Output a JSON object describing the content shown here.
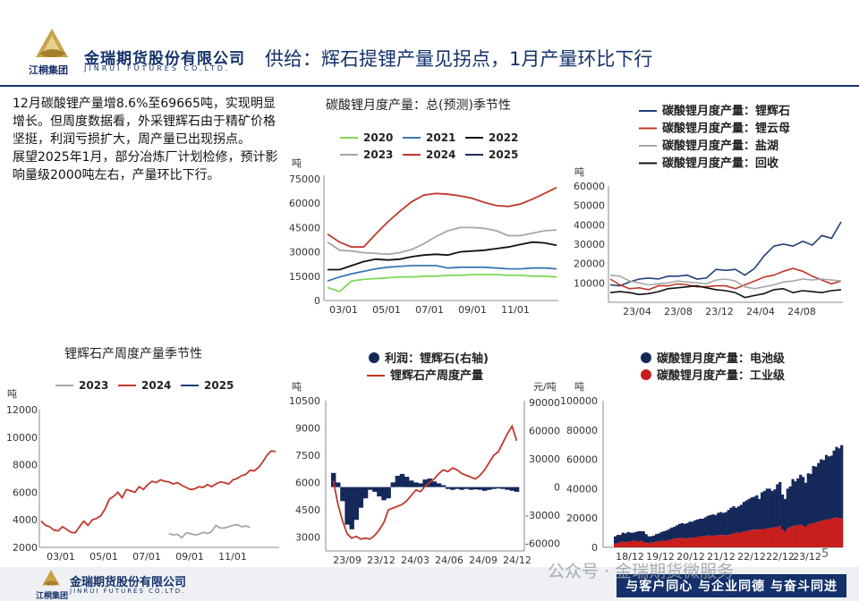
{
  "header": {
    "group_label": "江桐集团",
    "company_cn": "金瑞期货股份有限公司",
    "company_en": "JINRUI FUTURES CO.LTD.",
    "title": "供给：辉石提锂产量见拐点，1月产量环比下行"
  },
  "paragraphs": [
    "12月碳酸锂产量增8.6%至69665吨，实现明显增长。但周度数据看，外采锂辉石由于精矿价格坚挺，利润亏损扩大，周产量已出现拐点。",
    "展望2025年1月，部分冶炼厂计划检修，预计影响量级2000吨左右，产量环比下行。"
  ],
  "footer": {
    "group_label": "江桐集团",
    "company_cn": "金瑞期货股份有限公司",
    "company_en": "JINRUI FUTURES CO.LTD.",
    "slogan": "与客户同心 与企业同德 与奋斗同进",
    "watermark": "公众号 · 金瑞期货微服务",
    "page_number": "5"
  },
  "chart_data": [
    {
      "id": "chart1",
      "type": "line",
      "title": "碳酸锂月度产量：总(预测)季节性",
      "ylabel": "吨",
      "ylim": [
        0,
        75000
      ],
      "yticks": [
        0,
        15000,
        30000,
        45000,
        60000,
        75000
      ],
      "yticklabels": [
        "0",
        "15000",
        "30000",
        "45000",
        "60000",
        "75000"
      ],
      "xticks": [
        "03/01",
        "05/01",
        "07/01",
        "09/01",
        "11/01"
      ],
      "series": [
        {
          "name": "2020",
          "color": "#7ed957",
          "values": [
            8000,
            5500,
            12000,
            13000,
            13500,
            14000,
            14500,
            14500,
            15000,
            15000,
            15500,
            15500,
            16000,
            16000,
            16000,
            15500,
            15500,
            15000,
            15000,
            14500
          ]
        },
        {
          "name": "2021",
          "color": "#3a78b5",
          "values": [
            12000,
            14500,
            16500,
            18000,
            19500,
            20500,
            21000,
            21500,
            21500,
            21500,
            20000,
            20500,
            20500,
            20500,
            20000,
            19500,
            19500,
            20000,
            20000,
            19500
          ]
        },
        {
          "name": "2022",
          "color": "#111111",
          "values": [
            19000,
            19000,
            21500,
            24000,
            25500,
            25000,
            25500,
            27000,
            28000,
            28500,
            28000,
            30000,
            30500,
            31000,
            32000,
            33000,
            34500,
            36000,
            35500,
            34000
          ]
        },
        {
          "name": "2023",
          "color": "#a6a6a6",
          "values": [
            36000,
            31000,
            30500,
            29500,
            29000,
            28500,
            29500,
            31500,
            35000,
            39500,
            43000,
            45000,
            45000,
            44500,
            43000,
            40000,
            40000,
            41500,
            43000,
            43500
          ]
        },
        {
          "name": "2024",
          "color": "#c0392b",
          "values": [
            41000,
            36000,
            33000,
            33000,
            41000,
            48500,
            55000,
            61000,
            65000,
            66000,
            65500,
            64500,
            63000,
            60500,
            58500,
            58000,
            59500,
            62500,
            66000,
            69665
          ]
        },
        {
          "name": "2025",
          "color": "#1f2a5a",
          "values": []
        }
      ]
    },
    {
      "id": "chart2",
      "type": "line",
      "ylabel": "吨",
      "ylim": [
        0,
        60000
      ],
      "yticks": [
        10000,
        20000,
        30000,
        40000,
        50000,
        60000
      ],
      "yticklabels": [
        "10000",
        "20000",
        "30000",
        "40000",
        "50000",
        "60000"
      ],
      "xticks": [
        "23/04",
        "23/08",
        "23/12",
        "24/04",
        "24/08"
      ],
      "series": [
        {
          "name": "碳酸锂月度产量：锂辉石",
          "color": "#1f3e7a",
          "values": [
            9000,
            8500,
            10500,
            12000,
            12500,
            12000,
            13500,
            13500,
            14000,
            12000,
            12500,
            17000,
            16500,
            17000,
            14000,
            17500,
            24000,
            29000,
            30000,
            29000,
            31500,
            29500,
            34500,
            33000,
            41500
          ]
        },
        {
          "name": "碳酸锂月度产量：锂云母",
          "color": "#c0392b",
          "values": [
            12000,
            9000,
            7000,
            7500,
            6500,
            8500,
            8500,
            9500,
            9000,
            8000,
            8000,
            8500,
            8500,
            7000,
            9000,
            11000,
            13000,
            14000,
            16000,
            17500,
            16000,
            13500,
            11500,
            9500,
            11000
          ]
        },
        {
          "name": "碳酸锂月度产量：盐湖",
          "color": "#a6a6a6",
          "values": [
            14000,
            13500,
            11000,
            10000,
            9000,
            9500,
            10000,
            11000,
            10500,
            10000,
            9500,
            11500,
            12000,
            11000,
            8000,
            7000,
            8000,
            9000,
            10500,
            11000,
            12000,
            11500,
            12000,
            11500,
            11000
          ]
        },
        {
          "name": "碳酸锂月度产量：回收",
          "color": "#111111",
          "values": [
            5000,
            5500,
            5000,
            4000,
            4500,
            5500,
            7000,
            7500,
            8000,
            8500,
            7500,
            6500,
            6000,
            5000,
            2500,
            3500,
            4500,
            6500,
            7000,
            5000,
            6000,
            5500,
            5000,
            6000,
            6500
          ]
        }
      ]
    },
    {
      "id": "chart3",
      "type": "line",
      "title": "锂辉石产周度产量季节性",
      "ylabel": "吨",
      "ylim": [
        2000,
        12000
      ],
      "yticks": [
        2000,
        4000,
        6000,
        8000,
        10000,
        12000
      ],
      "yticklabels": [
        "2000",
        "4000",
        "6000",
        "8000",
        "10000",
        "12000"
      ],
      "xticks": [
        "03/01",
        "05/01",
        "07/01",
        "09/01",
        "11/01"
      ],
      "series": [
        {
          "name": "2023",
          "color": "#a6a6a6",
          "x_start": 0.55,
          "values": [
            3000,
            2900,
            2950,
            2700,
            3050,
            3000,
            2900,
            2950,
            3100,
            3000,
            3150,
            3600,
            3400,
            3400,
            3500,
            3600,
            3650,
            3500,
            3550,
            3450
          ]
        },
        {
          "name": "2024",
          "color": "#c0392b",
          "x_start": 0,
          "values": [
            3900,
            3600,
            3500,
            3250,
            3200,
            3500,
            3300,
            3100,
            3050,
            3500,
            3900,
            3600,
            4000,
            4100,
            4300,
            4800,
            5500,
            5700,
            6000,
            5600,
            6200,
            6100,
            6000,
            6400,
            6200,
            6550,
            6800,
            6700,
            6900,
            6800,
            6750,
            6600,
            6700,
            6500,
            6350,
            6200,
            6250,
            6400,
            6350,
            6550,
            6400,
            6600,
            6750,
            6700,
            6600,
            6900,
            7000,
            7200,
            7300,
            7600,
            7550,
            7800,
            8200,
            8700,
            9000,
            8950
          ]
        },
        {
          "name": "2025",
          "color": "#1f3e7a",
          "values": []
        }
      ]
    },
    {
      "id": "chart4",
      "type": "line",
      "ylabel": "吨",
      "y2label": "元/吨",
      "ylim": [
        2250,
        10500
      ],
      "yticks": [
        3000,
        4500,
        6000,
        7500,
        9000,
        10500
      ],
      "yticklabels": [
        "3000",
        "4500",
        "6000",
        "7500",
        "9000",
        "10500"
      ],
      "y2lim": [
        -68000,
        92000
      ],
      "y2ticks": [
        -60000,
        -30000,
        0,
        30000,
        60000,
        90000
      ],
      "y2ticklabels": [
        "-60000",
        "-30000",
        "0",
        "30000",
        "60000",
        "90000"
      ],
      "xticks": [
        "23/09",
        "23/12",
        "24/03",
        "24/06",
        "24/09",
        "24/12"
      ],
      "series": [
        {
          "name": "利润：锂辉石(右轴)",
          "type": "bar",
          "color": "#14285a",
          "values": [
            15000,
            5000,
            -15000,
            -40000,
            -45000,
            -35000,
            -22000,
            -12000,
            -3000,
            -5000,
            -10000,
            -14000,
            -12000,
            5000,
            12000,
            14000,
            11000,
            7000,
            5000,
            4000,
            8000,
            9000,
            6000,
            4000,
            2000,
            -2000,
            -3000,
            -2000,
            -3000,
            -2000,
            -3000,
            -2500,
            -3000,
            -4000,
            -3000,
            -2000,
            -1500,
            -2000,
            -3000,
            -4000,
            -5000
          ]
        },
        {
          "name": "锂辉石产周度产量",
          "type": "line",
          "color": "#c0392b",
          "values": [
            6100,
            4800,
            3900,
            3200,
            2950,
            3050,
            2900,
            2950,
            2900,
            3100,
            3400,
            3800,
            4500,
            4600,
            4700,
            4800,
            5000,
            5300,
            5600,
            5500,
            5800,
            6000,
            6200,
            6500,
            6700,
            6600,
            6800,
            6700,
            6500,
            6400,
            6300,
            6200,
            6400,
            6700,
            7100,
            7500,
            7700,
            8200,
            8700,
            9100,
            8300
          ]
        }
      ]
    },
    {
      "id": "chart5",
      "type": "bar",
      "ylabel": "吨",
      "ylim": [
        0,
        100000
      ],
      "yticks": [
        0,
        20000,
        40000,
        60000,
        80000,
        100000
      ],
      "yticklabels": [
        "0",
        "20000",
        "40000",
        "60000",
        "80000",
        "100000"
      ],
      "xticks": [
        "18/12",
        "19/12",
        "20/12",
        "21/12",
        "22/12",
        "22/12",
        "23/12"
      ],
      "series": [
        {
          "name": "碳酸锂月度产量：电池级",
          "color": "#14285a",
          "values": [
            5000,
            5500,
            5000,
            6000,
            6000,
            6500,
            6000,
            5500,
            6000,
            7000,
            6500,
            7000,
            6000,
            4500,
            4000,
            4500,
            5000,
            5500,
            6000,
            6500,
            7000,
            7500,
            8000,
            8000,
            9000,
            9500,
            10000,
            9500,
            10500,
            11000,
            11000,
            11500,
            12000,
            12000,
            12000,
            13000,
            13500,
            14000,
            14500,
            14000,
            15000,
            15500,
            15000,
            16000,
            17000,
            18000,
            18500,
            17000,
            18000,
            19000,
            20000,
            21000,
            21500,
            22000,
            22500,
            23000,
            21000,
            25000,
            26000,
            27000,
            27000,
            25000,
            26000,
            29000,
            30000,
            24000,
            22000,
            27000,
            28000,
            32000,
            30000,
            32000,
            34000,
            33000,
            30000,
            35000,
            34000,
            39000,
            38000,
            40000,
            42000,
            41000,
            44000,
            43000,
            43000,
            46000,
            48000,
            47500,
            50000
          ]
        },
        {
          "name": "碳酸锂月度产量：工业级",
          "color": "#c81e1e",
          "values": [
            2500,
            3000,
            3500,
            4000,
            3500,
            4000,
            4000,
            4500,
            4500,
            4000,
            4500,
            4000,
            3000,
            3000,
            3500,
            3500,
            4000,
            4000,
            4500,
            4500,
            4500,
            5000,
            5500,
            6000,
            6000,
            6500,
            6500,
            6500,
            6000,
            6500,
            6500,
            7000,
            7000,
            7500,
            7500,
            7500,
            8000,
            8000,
            8000,
            8000,
            8500,
            8500,
            8500,
            8000,
            8500,
            9000,
            9500,
            10000,
            10000,
            10000,
            11000,
            11000,
            11500,
            12000,
            12000,
            12500,
            12000,
            12500,
            12500,
            13000,
            13000,
            13500,
            13500,
            14000,
            14500,
            12000,
            11000,
            13000,
            13500,
            14500,
            15000,
            15000,
            15500,
            15000,
            14000,
            15500,
            16000,
            16500,
            17000,
            17500,
            18000,
            18500,
            19000,
            19000,
            19500,
            20000,
            20500,
            20000,
            19665
          ]
        }
      ]
    }
  ]
}
